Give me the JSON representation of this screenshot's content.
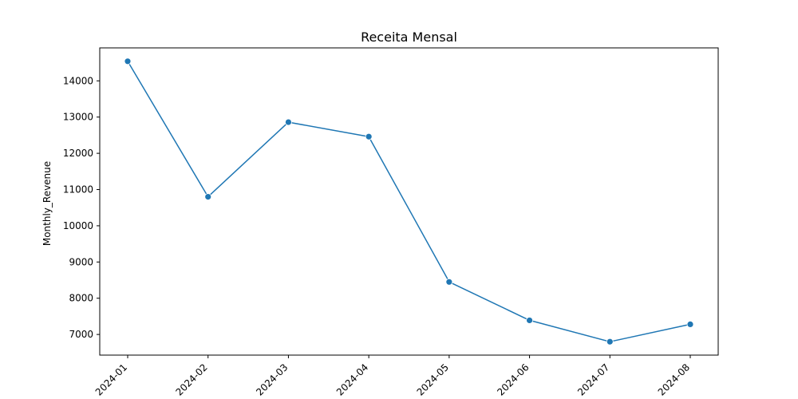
{
  "chart_data": {
    "type": "line",
    "title": "Receita Mensal",
    "xlabel": "",
    "ylabel": "Monthly_Revenue",
    "x": [
      "2024-01",
      "2024-02",
      "2024-03",
      "2024-04",
      "2024-05",
      "2024-06",
      "2024-07",
      "2024-08"
    ],
    "series": [
      {
        "values": [
          14540,
          10800,
          12860,
          12460,
          8450,
          7390,
          6800,
          7280
        ],
        "color": "#1f77b4",
        "marker": "circle"
      }
    ],
    "yticks": [
      7000,
      8000,
      9000,
      10000,
      11000,
      12000,
      13000,
      14000
    ],
    "ylim": [
      6430,
      14910
    ],
    "grid": false,
    "legend": "none"
  }
}
